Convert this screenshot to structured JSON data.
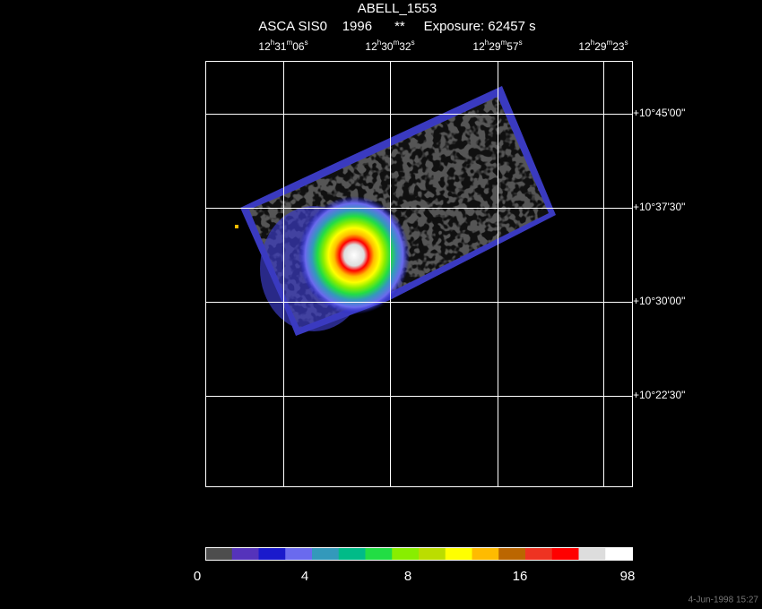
{
  "header": {
    "title": "ABELL_1553",
    "subtitle": "ASCA SIS0    1996      **     Exposure: 62457 s"
  },
  "ra_labels": [
    [
      "12",
      "h",
      "31",
      "m",
      "06",
      "s"
    ],
    [
      "12",
      "h",
      "30",
      "m",
      "32",
      "s"
    ],
    [
      "12",
      "h",
      "29",
      "m",
      "57",
      "s"
    ],
    [
      "12",
      "h",
      "29",
      "m",
      "23",
      "s"
    ]
  ],
  "dec_labels": [
    "+10°45'00\"",
    "+10°37'30\"",
    "+10°30'00\"",
    "+10°22'30\""
  ],
  "colorbar": {
    "colors": [
      "#4d4d4d",
      "#5533bb",
      "#1a1acc",
      "#6a6aee",
      "#3399bb",
      "#00bb88",
      "#22dd44",
      "#88ee00",
      "#bbdd00",
      "#ffff00",
      "#ffbb00",
      "#bb6600",
      "#ee3322",
      "#ff0000",
      "#dddddd",
      "#ffffff"
    ],
    "labels": [
      "0",
      "4",
      "8",
      "16",
      "98"
    ]
  },
  "footer": "4-Jun-1998 15:27"
}
